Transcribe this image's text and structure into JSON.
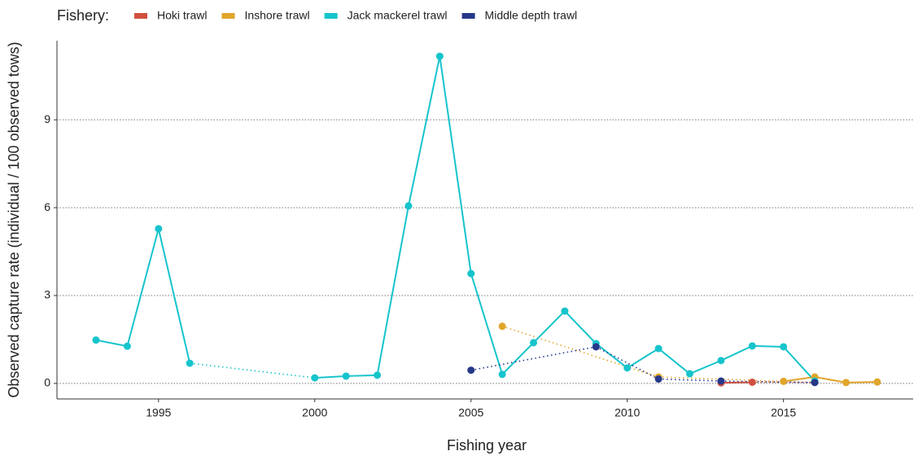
{
  "chart_data": {
    "type": "line",
    "legend_title": "Fishery:",
    "x_label": "Fishing year",
    "y_label": "Observed capture rate (individual / 100 observed tows)",
    "x": [
      1993,
      1994,
      1995,
      1996,
      1997,
      1998,
      1999,
      2000,
      2001,
      2002,
      2003,
      2004,
      2005,
      2006,
      2007,
      2008,
      2009,
      2010,
      2011,
      2012,
      2013,
      2014,
      2015,
      2016,
      2017,
      2018
    ],
    "series": [
      {
        "name": "Hoki trawl",
        "color": "#d1503f",
        "values": [
          null,
          null,
          null,
          null,
          null,
          null,
          null,
          null,
          null,
          null,
          null,
          null,
          null,
          null,
          null,
          null,
          null,
          null,
          null,
          null,
          0.02,
          0.04,
          null,
          0.04,
          null,
          null
        ]
      },
      {
        "name": "Inshore trawl",
        "color": "#e0a52a",
        "values": [
          null,
          null,
          null,
          null,
          null,
          null,
          null,
          null,
          null,
          null,
          null,
          null,
          null,
          1.95,
          null,
          null,
          null,
          null,
          0.22,
          null,
          null,
          null,
          0.07,
          0.22,
          0.03,
          0.05
        ]
      },
      {
        "name": "Jack mackerel trawl",
        "color": "#16c4cc",
        "values": [
          1.48,
          1.27,
          5.28,
          0.69,
          null,
          null,
          null,
          0.19,
          0.25,
          0.28,
          6.06,
          11.17,
          3.75,
          0.31,
          1.39,
          2.47,
          1.36,
          0.53,
          1.19,
          0.33,
          0.78,
          1.28,
          1.25,
          0.08,
          null,
          null
        ]
      },
      {
        "name": "Middle depth trawl",
        "color": "#27388a",
        "values": [
          null,
          null,
          null,
          null,
          null,
          null,
          null,
          null,
          null,
          null,
          null,
          null,
          0.45,
          null,
          null,
          null,
          1.25,
          null,
          0.15,
          null,
          0.08,
          null,
          null,
          0.03,
          null,
          null
        ]
      }
    ],
    "xlim": [
      1991.75,
      2019.15
    ],
    "xticks": [
      1995,
      2000,
      2005,
      2010,
      2015
    ],
    "ylim": [
      -0.53,
      11.7
    ],
    "yticks": [
      0,
      3,
      6,
      9
    ],
    "grid": true
  }
}
